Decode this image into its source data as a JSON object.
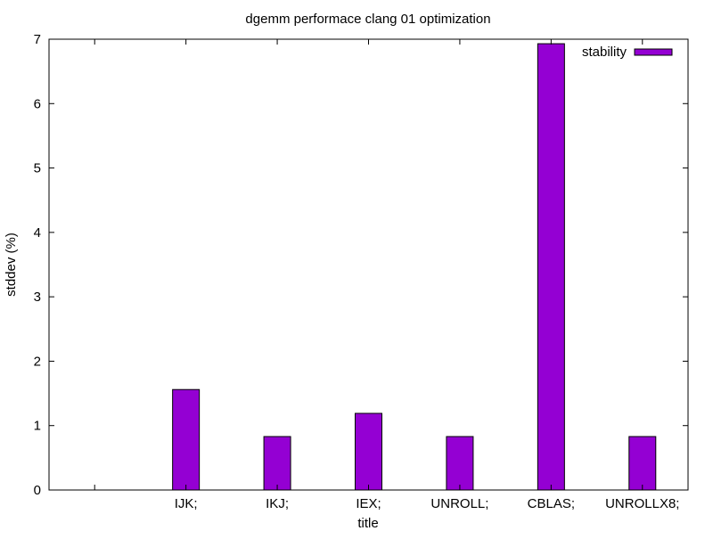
{
  "chart_data": {
    "type": "bar",
    "title": "dgemm performace clang 01 optimization",
    "xlabel": "title",
    "ylabel": "stddev (%)",
    "categories": [
      "",
      "IJK;",
      "IKJ;",
      "IEX;",
      "UNROLL;",
      "CBLAS;",
      "UNROLLX8;"
    ],
    "series": [
      {
        "name": "stability",
        "values": [
          null,
          1.56,
          0.83,
          1.19,
          0.83,
          6.93,
          0.83
        ],
        "color": "#9400d3"
      }
    ],
    "ylim": [
      0,
      7
    ],
    "yticks": [
      0,
      1,
      2,
      3,
      4,
      5,
      6,
      7
    ],
    "xlim": [
      -0.5,
      6.5
    ],
    "grid": false,
    "legend_position": "top-right"
  }
}
